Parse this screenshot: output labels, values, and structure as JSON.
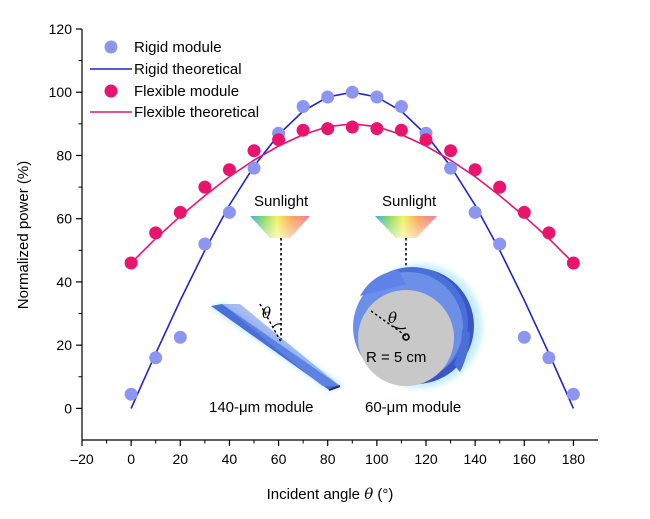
{
  "chart_data": {
    "type": "scatter",
    "xlabel": "Incident angle θ (°)",
    "xlabel_parts": [
      "Incident angle ",
      "θ",
      " (°)"
    ],
    "ylabel": "Normalized power (%)",
    "xlim": [
      -20,
      190
    ],
    "ylim": [
      -10,
      120
    ],
    "xticks": [
      -20,
      0,
      20,
      40,
      60,
      80,
      100,
      120,
      140,
      160,
      180
    ],
    "yticks": [
      0,
      20,
      40,
      60,
      80,
      100,
      120
    ],
    "grid": false,
    "legend_position": "top-left",
    "x": [
      0,
      10,
      20,
      30,
      40,
      50,
      60,
      70,
      80,
      90,
      100,
      110,
      120,
      130,
      140,
      150,
      160,
      170,
      180
    ],
    "series": [
      {
        "name": "Rigid module",
        "kind": "points",
        "color": "#8c96f0",
        "values": [
          4.5,
          16,
          22.5,
          52,
          62,
          76,
          87,
          95.5,
          98.5,
          100,
          98.5,
          95.5,
          87,
          76,
          62,
          52,
          22.5,
          16,
          4.5
        ]
      },
      {
        "name": "Rigid theoretical",
        "kind": "line",
        "color": "#1f23c4",
        "values": [
          0,
          17.4,
          34.2,
          50,
          64.3,
          76.6,
          86.6,
          94,
          98.5,
          100,
          98.5,
          94,
          86.6,
          76.6,
          64.3,
          50,
          34.2,
          17.4,
          0
        ]
      },
      {
        "name": "Flexible module",
        "kind": "points",
        "color": "#e8146e",
        "values": [
          46,
          55.5,
          62,
          70,
          75.5,
          81.5,
          85,
          88,
          88.5,
          89,
          88.5,
          88,
          85,
          81.5,
          75.5,
          70,
          62,
          55.5,
          46
        ]
      },
      {
        "name": "Flexible theoretical",
        "kind": "line",
        "color": "#e8146e",
        "values": [
          46,
          53.7,
          60.8,
          67.3,
          73.3,
          78.5,
          83,
          86.6,
          89.1,
          90,
          89.1,
          86.6,
          83,
          78.5,
          73.3,
          67.3,
          60.8,
          53.7,
          46
        ]
      }
    ]
  },
  "inset": {
    "sunlight_left": "Sunlight",
    "sunlight_right": "Sunlight",
    "theta_left": "θ",
    "theta_right": "θ",
    "radius_label": "R = 5 cm",
    "module_left_label": "140-μm module",
    "module_right_label": "60-μm module",
    "module_color": "#4a6fd8",
    "disk_color": "#c8c8c8"
  }
}
